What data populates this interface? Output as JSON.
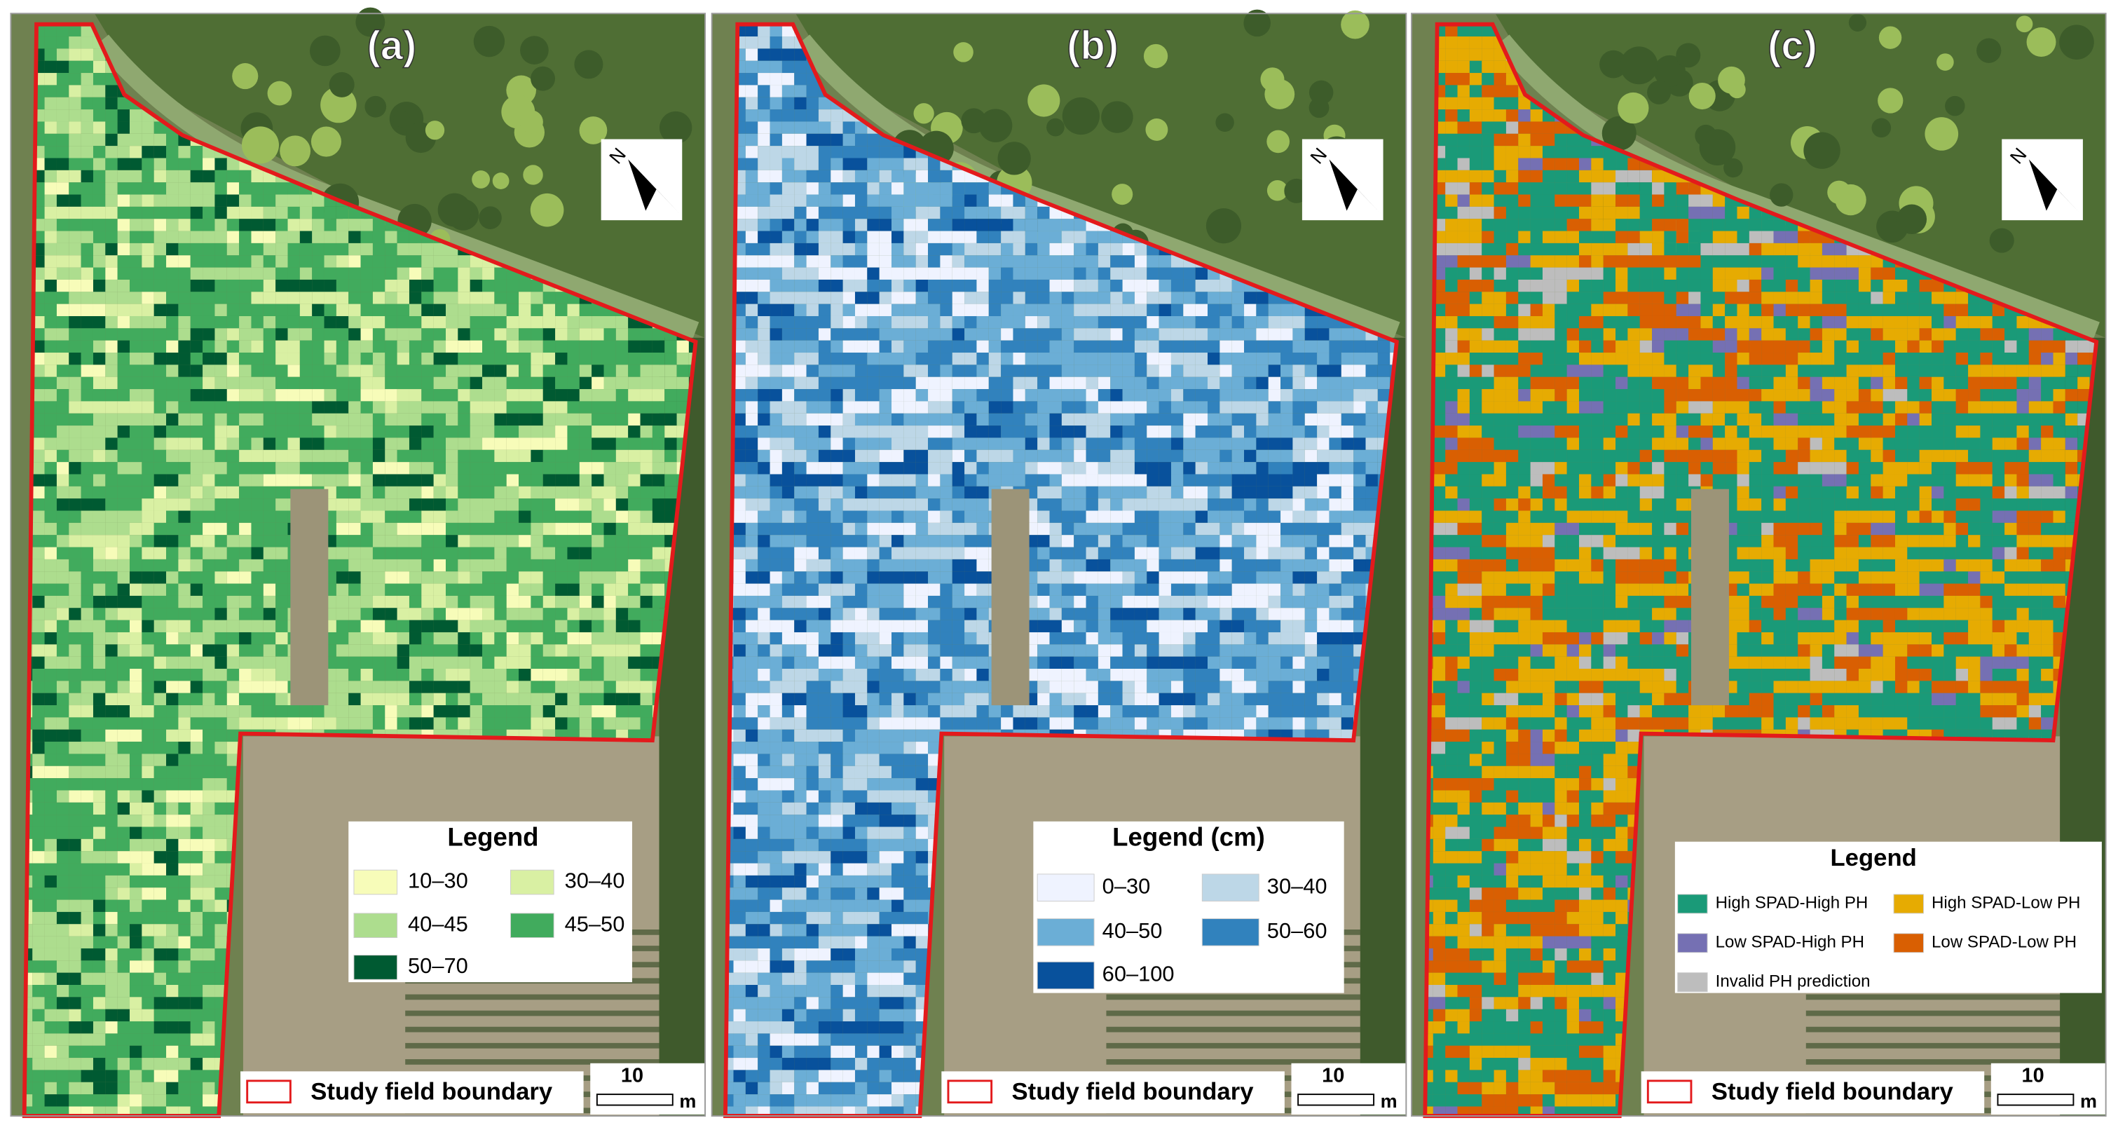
{
  "panels": [
    {
      "label": "(a)",
      "north": "N",
      "boundary_label": "Study field boundary",
      "scale": "10",
      "scale_unit": "m",
      "legend": {
        "title": "Legend",
        "items": [
          {
            "label": "10–30",
            "color": "#f7fcb9"
          },
          {
            "label": "30–40",
            "color": "#d9f0a3"
          },
          {
            "label": "40–45",
            "color": "#addd8e"
          },
          {
            "label": "45–50",
            "color": "#41ab5d"
          },
          {
            "label": "50–70",
            "color": "#005a32"
          }
        ]
      }
    },
    {
      "label": "(b)",
      "north": "N",
      "boundary_label": "Study field boundary",
      "scale": "10",
      "scale_unit": "m",
      "legend": {
        "title": "Legend (cm)",
        "items": [
          {
            "label": "0–30",
            "color": "#eff3ff"
          },
          {
            "label": "30–40",
            "color": "#bdd7e7"
          },
          {
            "label": "40–50",
            "color": "#6baed6"
          },
          {
            "label": "50–60",
            "color": "#3182bd"
          },
          {
            "label": "60–100",
            "color": "#08519c"
          }
        ]
      }
    },
    {
      "label": "(c)",
      "north": "N",
      "boundary_label": "Study field boundary",
      "scale": "10",
      "scale_unit": "m",
      "legend": {
        "title": "Legend",
        "items": [
          {
            "label": "High SPAD-High PH",
            "color": "#1a9a78"
          },
          {
            "label": "High SPAD-Low PH",
            "color": "#e6ab02"
          },
          {
            "label": "Low SPAD-High PH",
            "color": "#7570b3"
          },
          {
            "label": "Low SPAD-Low PH",
            "color": "#d95f02"
          },
          {
            "label": "Invalid PH prediction",
            "color": "#bdbdbd"
          }
        ]
      }
    }
  ]
}
